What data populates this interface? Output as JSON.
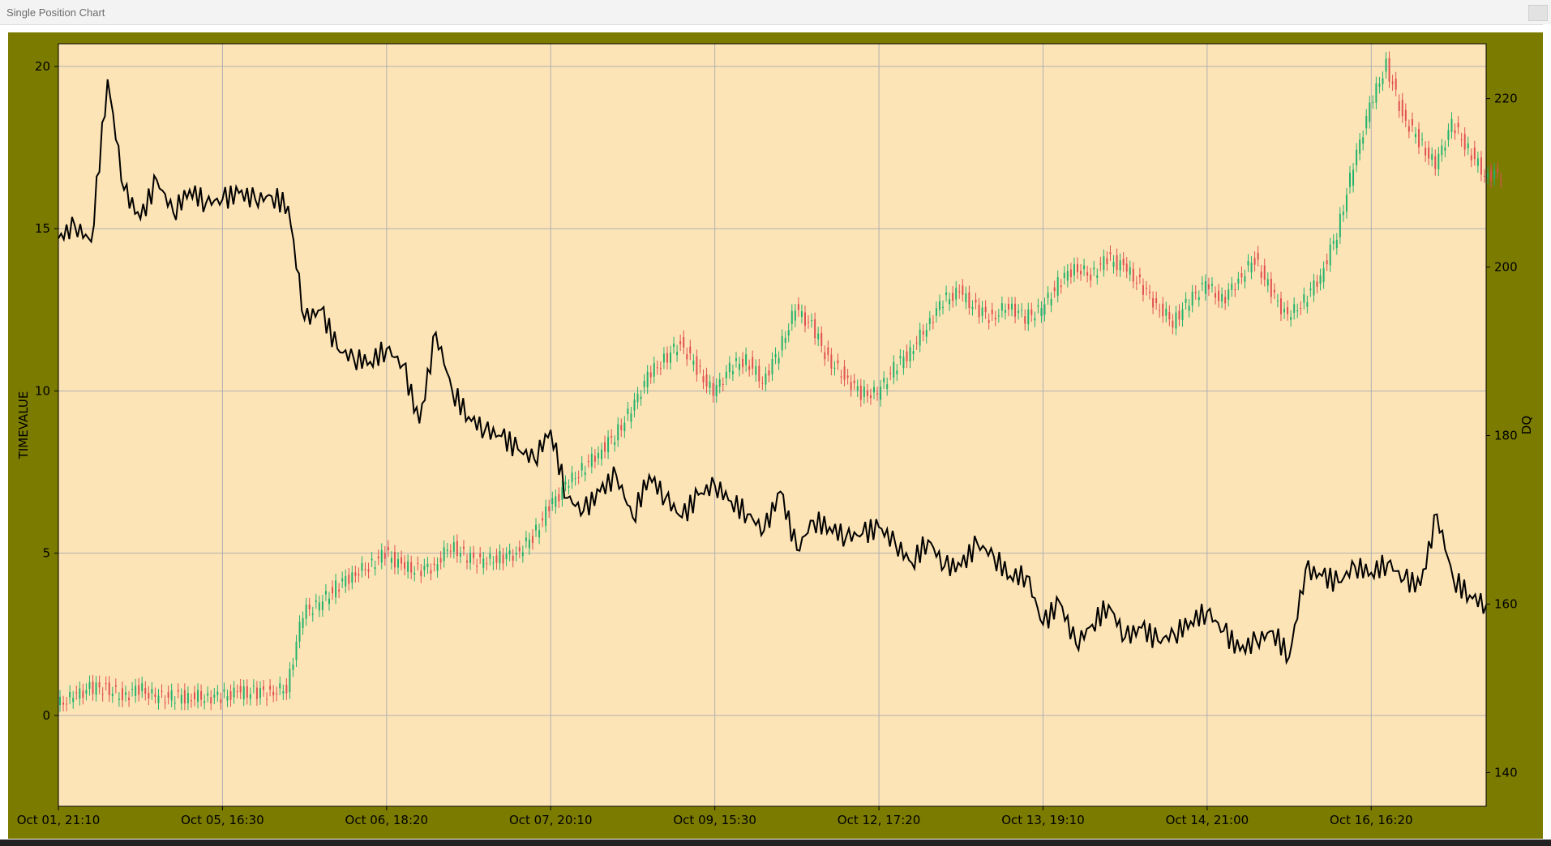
{
  "window": {
    "title": "Single Position Chart"
  },
  "colors": {
    "frame_bg": "#7b7b00",
    "plot_bg": "#fde4b6",
    "grid": "#b0b0b0",
    "line": "#000000",
    "candle_up": "#22b36b",
    "candle_down": "#e05050"
  },
  "chart_data": {
    "type": "line",
    "title": "",
    "xlabel": "",
    "ylabel": "TIMEVALUE",
    "y2label": "DQ",
    "x_tick_labels": [
      "Oct 01, 21:10",
      "Oct 05, 16:30",
      "Oct 06, 18:20",
      "Oct 07, 20:10",
      "Oct 09, 15:30",
      "Oct 12, 17:20",
      "Oct 13, 19:10",
      "Oct 14, 21:00",
      "Oct 16, 16:20"
    ],
    "y_ticks": [
      0,
      5,
      10,
      15,
      20
    ],
    "y2_ticks": [
      140,
      160,
      180,
      200,
      220
    ],
    "ylim": [
      -2.8,
      20.7
    ],
    "y2lim": [
      136,
      226.5
    ],
    "grid": true,
    "series": [
      {
        "name": "TIMEVALUE",
        "axis": "left",
        "style": "line",
        "x": [
          0,
          0.1,
          0.2,
          0.3,
          0.4,
          0.5,
          0.6,
          0.7,
          0.8,
          0.9,
          1.0,
          1.1,
          1.2,
          1.3,
          1.4,
          1.5,
          1.6,
          1.7,
          1.8,
          1.9,
          2.0,
          2.1,
          2.2,
          2.3,
          2.4,
          2.5,
          2.6,
          2.7,
          2.8,
          2.9,
          3.0,
          3.1,
          3.2,
          3.3,
          3.4,
          3.5,
          3.6,
          3.7,
          3.8,
          3.9,
          4.0,
          4.1,
          4.2,
          4.3,
          4.4,
          4.5,
          4.6,
          4.7,
          4.8,
          4.9,
          5.0,
          5.1,
          5.2,
          5.3,
          5.4,
          5.5,
          5.6,
          5.7,
          5.8,
          5.9,
          6.0,
          6.1,
          6.2,
          6.3,
          6.4,
          6.5,
          6.6,
          6.7,
          6.8,
          6.9,
          7.0,
          7.1,
          7.2,
          7.3,
          7.4,
          7.5,
          7.6,
          7.7,
          7.8,
          7.9,
          8.0,
          8.1,
          8.2,
          8.3,
          8.4,
          8.5,
          8.6,
          8.7
        ],
        "values": [
          14.7,
          15.1,
          14.6,
          19.6,
          16.2,
          15.3,
          16.5,
          15.5,
          16.2,
          15.8,
          15.9,
          16.1,
          15.9,
          16.0,
          15.7,
          12.2,
          12.5,
          11.3,
          11.0,
          10.9,
          11.3,
          10.8,
          9.0,
          11.8,
          10.0,
          9.2,
          8.8,
          8.6,
          8.2,
          7.9,
          8.8,
          6.7,
          6.3,
          6.9,
          7.4,
          6.1,
          7.4,
          6.7,
          6.1,
          6.8,
          7.1,
          6.6,
          6.2,
          5.7,
          6.9,
          5.1,
          6.0,
          5.8,
          5.5,
          5.6,
          5.8,
          5.3,
          4.7,
          5.4,
          4.6,
          4.6,
          5.3,
          4.9,
          4.3,
          4.3,
          2.8,
          3.5,
          2.2,
          2.8,
          3.4,
          2.4,
          2.7,
          2.3,
          2.5,
          2.9,
          3.2,
          2.6,
          2.0,
          2.3,
          2.6,
          1.8,
          4.5,
          4.3,
          4.1,
          4.6,
          4.4,
          4.7,
          4.2,
          4.0,
          6.2,
          4.2,
          3.7,
          3.4
        ]
      },
      {
        "name": "DQ",
        "axis": "right",
        "style": "candlestick",
        "x": [
          0,
          0.1,
          0.2,
          0.3,
          0.4,
          0.5,
          0.6,
          0.7,
          0.8,
          0.9,
          1.0,
          1.1,
          1.2,
          1.3,
          1.4,
          1.5,
          1.6,
          1.7,
          1.8,
          1.9,
          2.0,
          2.1,
          2.2,
          2.3,
          2.4,
          2.5,
          2.6,
          2.7,
          2.8,
          2.9,
          3.0,
          3.1,
          3.2,
          3.3,
          3.4,
          3.5,
          3.6,
          3.7,
          3.8,
          3.9,
          4.0,
          4.1,
          4.2,
          4.3,
          4.4,
          4.5,
          4.6,
          4.7,
          4.8,
          4.9,
          5.0,
          5.1,
          5.2,
          5.3,
          5.4,
          5.5,
          5.6,
          5.7,
          5.8,
          5.9,
          6.0,
          6.1,
          6.2,
          6.3,
          6.4,
          6.5,
          6.6,
          6.7,
          6.8,
          6.9,
          7.0,
          7.1,
          7.2,
          7.3,
          7.4,
          7.5,
          7.6,
          7.7,
          7.8,
          7.9,
          8.0,
          8.1,
          8.2,
          8.3,
          8.4,
          8.5,
          8.6,
          8.7
        ],
        "values": [
          148,
          149,
          150,
          150,
          149,
          150,
          149,
          149,
          149,
          149,
          149,
          149.5,
          149.5,
          149.5,
          150,
          159,
          160,
          162,
          163.5,
          164.5,
          166,
          164.5,
          164,
          164.5,
          167,
          165.5,
          165,
          165.5,
          166,
          168,
          171.5,
          174,
          176,
          178,
          180,
          183,
          187,
          189,
          191,
          188,
          185,
          188,
          189,
          186.5,
          190,
          195,
          193,
          189,
          187,
          185,
          185,
          188,
          190,
          193,
          196,
          197,
          195,
          194,
          195.5,
          194,
          195,
          198,
          200,
          199,
          201,
          200,
          198,
          195.5,
          193.5,
          196,
          198,
          196,
          198.5,
          201,
          197,
          194,
          196,
          199,
          204,
          212,
          219,
          224,
          218,
          215,
          212,
          217,
          214,
          211
        ]
      }
    ]
  }
}
